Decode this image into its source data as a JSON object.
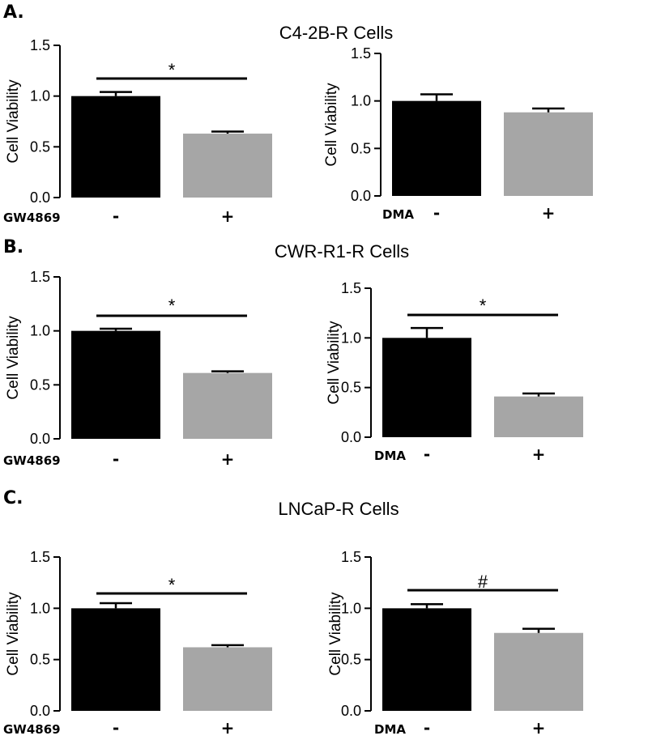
{
  "figure": {
    "rows": [
      {
        "letter": "A.",
        "title": "C4-2B-R Cells"
      },
      {
        "letter": "B.",
        "title": "CWR-R1-R Cells"
      },
      {
        "letter": "C.",
        "title": "LNCaP-R Cells"
      }
    ]
  },
  "chart_data": [
    {
      "type": "bar",
      "panel": "A-left",
      "ylabel": "Cell Viability",
      "ylim": [
        0,
        1.5
      ],
      "yticks": [
        "0.0",
        "0.5",
        "1.0",
        "1.5"
      ],
      "condition": "GW4869",
      "categories": [
        "-",
        "+"
      ],
      "values": [
        1.0,
        0.63
      ],
      "errors": [
        0.04,
        0.02
      ],
      "colors": [
        "#000000",
        "#a6a6a6"
      ],
      "significance": "*"
    },
    {
      "type": "bar",
      "panel": "A-right",
      "ylabel": "Cell Viability",
      "ylim": [
        0,
        1.5
      ],
      "yticks": [
        "0.0",
        "0.5",
        "1.0",
        "1.5"
      ],
      "condition": "DMA",
      "categories": [
        "-",
        "+"
      ],
      "values": [
        1.0,
        0.88
      ],
      "errors": [
        0.07,
        0.04
      ],
      "colors": [
        "#000000",
        "#a6a6a6"
      ],
      "significance": ""
    },
    {
      "type": "bar",
      "panel": "B-left",
      "ylabel": "Cell Viability",
      "ylim": [
        0,
        1.5
      ],
      "yticks": [
        "0.0",
        "0.5",
        "1.0",
        "1.5"
      ],
      "condition": "GW4869",
      "categories": [
        "-",
        "+"
      ],
      "values": [
        1.0,
        0.61
      ],
      "errors": [
        0.02,
        0.015
      ],
      "colors": [
        "#000000",
        "#a6a6a6"
      ],
      "significance": "*"
    },
    {
      "type": "bar",
      "panel": "B-right",
      "ylabel": "Cell Viability",
      "ylim": [
        0,
        1.5
      ],
      "yticks": [
        "0.0",
        "0.5",
        "1.0",
        "1.5"
      ],
      "condition": "DMA",
      "categories": [
        "-",
        "+"
      ],
      "values": [
        1.0,
        0.41
      ],
      "errors": [
        0.1,
        0.03
      ],
      "colors": [
        "#000000",
        "#a6a6a6"
      ],
      "significance": "*"
    },
    {
      "type": "bar",
      "panel": "C-left",
      "ylabel": "Cell Viability",
      "ylim": [
        0,
        1.5
      ],
      "yticks": [
        "0.0",
        "0.5",
        "1.0",
        "1.5"
      ],
      "condition": "GW4869",
      "categories": [
        "-",
        "+"
      ],
      "values": [
        1.0,
        0.62
      ],
      "errors": [
        0.05,
        0.02
      ],
      "colors": [
        "#000000",
        "#a6a6a6"
      ],
      "significance": "*"
    },
    {
      "type": "bar",
      "panel": "C-right",
      "ylabel": "Cell Viability",
      "ylim": [
        0,
        1.5
      ],
      "yticks": [
        "0.0",
        "0.5",
        "1.0",
        "1.5"
      ],
      "condition": "DMA",
      "categories": [
        "-",
        "+"
      ],
      "values": [
        1.0,
        0.76
      ],
      "errors": [
        0.04,
        0.04
      ],
      "colors": [
        "#000000",
        "#a6a6a6"
      ],
      "significance": "#"
    }
  ]
}
